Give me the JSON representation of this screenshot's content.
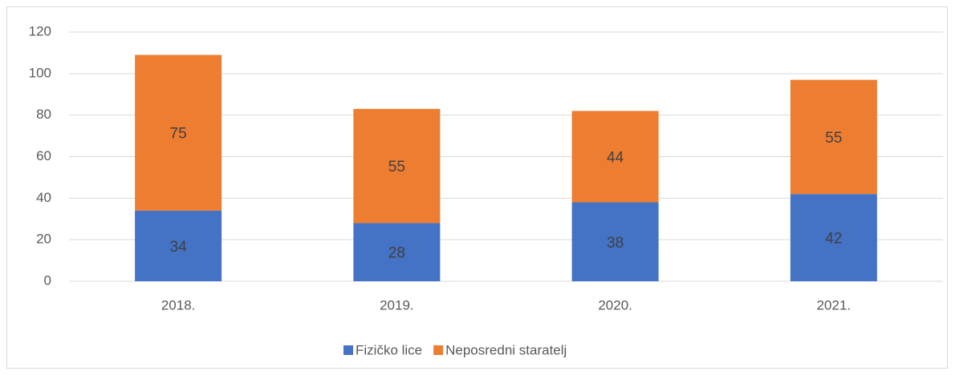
{
  "chart_data": {
    "type": "bar",
    "stacked": true,
    "categories": [
      "2018.",
      "2019.",
      "2020.",
      "2021."
    ],
    "series": [
      {
        "name": "Fizičko lice",
        "color": "#4472c4",
        "values": [
          34,
          28,
          38,
          42
        ]
      },
      {
        "name": "Neposredni staratelj",
        "color": "#ed7d31",
        "values": [
          75,
          55,
          44,
          55
        ]
      }
    ],
    "ylim": [
      0,
      120
    ],
    "yticks": [
      0,
      20,
      40,
      60,
      80,
      100,
      120
    ],
    "grid": true,
    "legend": "bottom"
  }
}
